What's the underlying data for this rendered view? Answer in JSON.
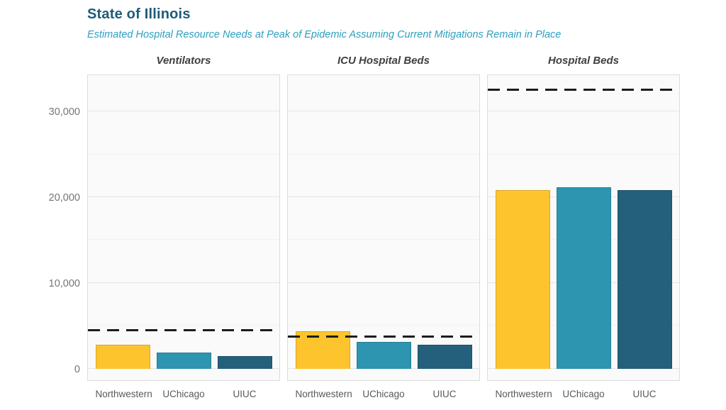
{
  "header": {
    "title": "State of Illinois",
    "subtitle": "Estimated Hospital Resource Needs at Peak of Epidemic Assuming Current Mitigations Remain in Place"
  },
  "chart_data": {
    "type": "bar",
    "title": "State of Illinois",
    "subtitle": "Estimated Hospital Resource Needs at Peak of Epidemic Assuming Current Mitigations Remain in Place",
    "categories": [
      "Northwestern",
      "UChicago",
      "UIUC"
    ],
    "facets": [
      {
        "label": "Ventilators",
        "values": [
          2800,
          1900,
          1500
        ],
        "capacity_line": 4500
      },
      {
        "label": "ICU Hospital Beds",
        "values": [
          4400,
          3150,
          2800
        ],
        "capacity_line": 3750
      },
      {
        "label": "Hospital Beds",
        "values": [
          20800,
          21200,
          20800
        ],
        "capacity_line": 32500
      }
    ],
    "bar_colors": [
      "#FDC42D",
      "#2D95AF",
      "#24607C"
    ],
    "capacity_line_color": "#1c1c1c",
    "capacity_line_style": "dashed",
    "y_ticks": [
      {
        "value": 0,
        "label": "0"
      },
      {
        "value": 10000,
        "label": "10,000"
      },
      {
        "value": 20000,
        "label": "20,000"
      },
      {
        "value": 30000,
        "label": "30,000"
      }
    ],
    "y_minor_ticks": [
      5000,
      15000,
      25000
    ],
    "ylim": [
      -1350,
      34400
    ],
    "xlabel": "",
    "ylabel": "",
    "grid": "major+minor horizontal",
    "legend": "none",
    "panel_background": "#fafafa",
    "title_color": "#1E5B7A",
    "subtitle_color": "#2C9FBF"
  }
}
